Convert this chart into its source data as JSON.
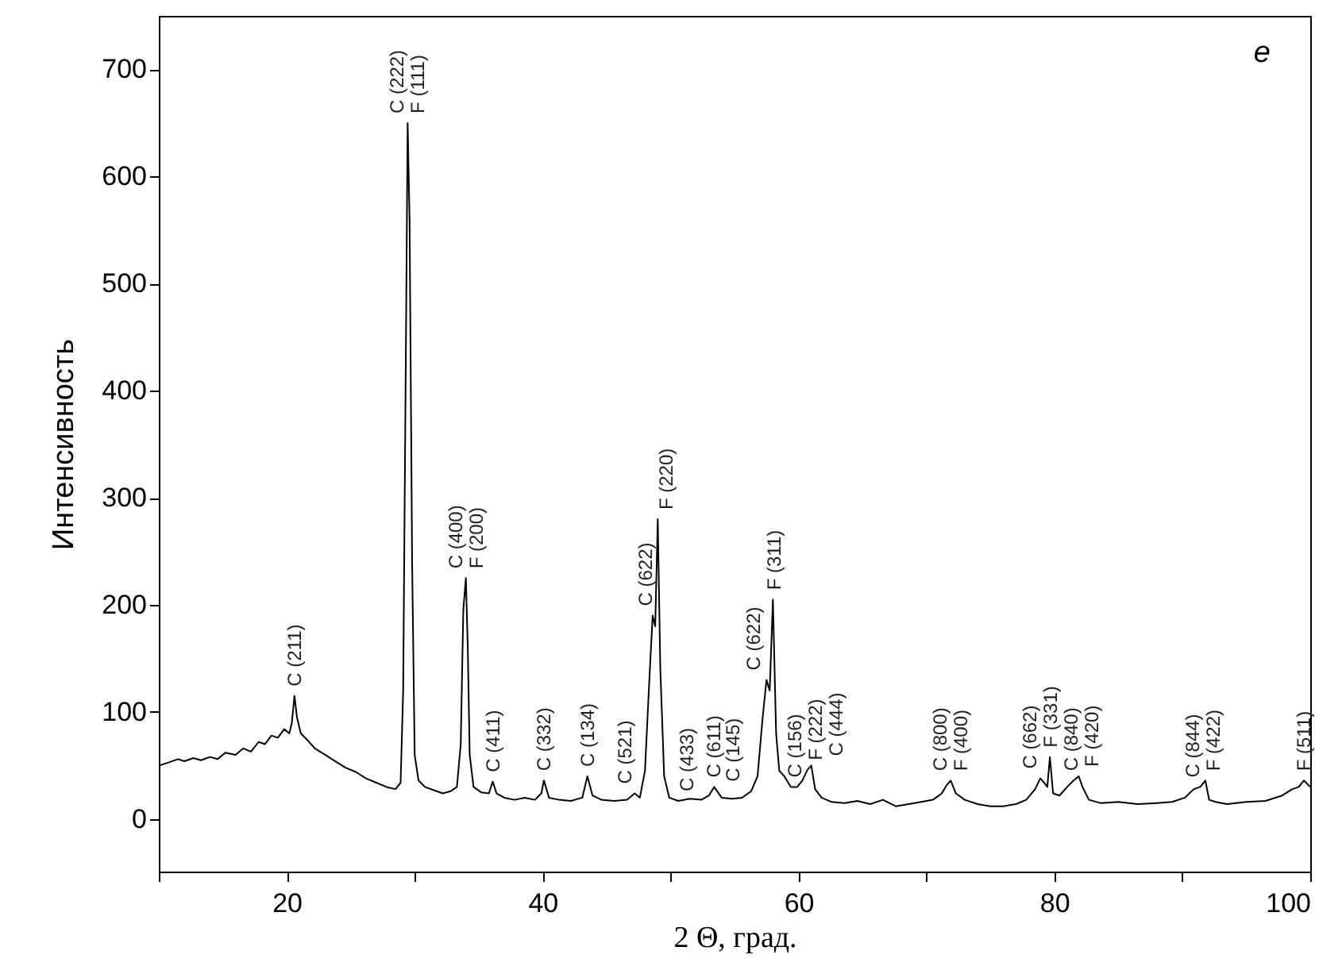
{
  "chart_data": {
    "type": "line",
    "xlabel": "2 Θ, град.",
    "ylabel": "Интенсивность",
    "xlim": [
      10,
      100
    ],
    "ylim": [
      -49,
      750
    ],
    "xticks": [
      {
        "value": 10,
        "label": null
      },
      20,
      {
        "value": 30,
        "label": null
      },
      40,
      {
        "value": 50,
        "label": null
      },
      60,
      {
        "value": 70,
        "label": null
      },
      80,
      {
        "value": 90,
        "label": null
      },
      100
    ],
    "yticks": [
      0,
      100,
      200,
      300,
      400,
      500,
      600,
      700
    ],
    "grid": false,
    "marker": "none",
    "line_style": "solid",
    "series": [
      {
        "color": "#000000",
        "x": [
          10,
          10.8,
          11.5,
          12,
          12.7,
          13.3,
          14,
          14.6,
          15.2,
          16,
          16.6,
          17.2,
          17.8,
          18.3,
          18.8,
          19.3,
          19.8,
          20.2,
          20.4,
          20.6,
          20.8,
          21.1,
          21.6,
          22.2,
          23,
          23.8,
          24.6,
          25.4,
          26.2,
          27,
          27.8,
          28.5,
          28.9,
          29.1,
          29.3,
          29.45,
          29.6,
          29.8,
          30,
          30.3,
          30.8,
          31.5,
          32.2,
          32.8,
          33.3,
          33.6,
          33.8,
          34,
          34.15,
          34.3,
          34.6,
          35.2,
          35.8,
          36.1,
          36.4,
          37,
          37.8,
          38.6,
          39.4,
          39.9,
          40.1,
          40.5,
          41.3,
          42.2,
          43.1,
          43.5,
          43.9,
          44.6,
          45.6,
          46.6,
          47.2,
          47.6,
          48,
          48.3,
          48.6,
          48.8,
          49,
          49.2,
          49.5,
          49.9,
          50.6,
          51.5,
          52.4,
          53,
          53.4,
          54,
          54.8,
          55.6,
          56.3,
          56.8,
          57.2,
          57.5,
          57.75,
          58,
          58.25,
          58.5,
          58.9,
          59.4,
          59.9,
          60.3,
          60.7,
          61,
          61.3,
          61.8,
          62.6,
          63.6,
          64.6,
          65.6,
          66.6,
          67.6,
          68.6,
          69.6,
          70.5,
          71.2,
          71.6,
          71.9,
          72.3,
          73,
          74,
          75,
          76,
          77,
          77.8,
          78.5,
          78.9,
          79.2,
          79.45,
          79.65,
          79.9,
          80.4,
          81,
          81.5,
          81.9,
          82.2,
          82.7,
          83.6,
          85,
          86.5,
          88,
          89.2,
          90.2,
          90.9,
          91.4,
          91.8,
          92.1,
          92.6,
          93.5,
          95,
          96.5,
          97.8,
          98.6,
          99.1,
          99.5,
          100
        ],
        "values": [
          50,
          53,
          56,
          54,
          57,
          55,
          58,
          56,
          62,
          60,
          66,
          63,
          72,
          70,
          78,
          76,
          84,
          80,
          90,
          115,
          95,
          80,
          74,
          66,
          60,
          54,
          48,
          44,
          38,
          34,
          30,
          28,
          34,
          120,
          420,
          650,
          560,
          240,
          60,
          36,
          30,
          27,
          24,
          26,
          30,
          70,
          195,
          225,
          160,
          60,
          30,
          25,
          24,
          35,
          24,
          20,
          18,
          20,
          18,
          24,
          36,
          20,
          18,
          17,
          20,
          40,
          22,
          18,
          17,
          18,
          24,
          20,
          45,
          120,
          190,
          180,
          280,
          140,
          40,
          20,
          17,
          19,
          18,
          22,
          30,
          20,
          19,
          20,
          26,
          40,
          95,
          130,
          120,
          205,
          80,
          45,
          40,
          30,
          30,
          36,
          46,
          50,
          28,
          20,
          16,
          15,
          17,
          14,
          18,
          12,
          14,
          16,
          18,
          24,
          32,
          36,
          24,
          18,
          14,
          12,
          12,
          14,
          18,
          28,
          38,
          34,
          30,
          58,
          24,
          22,
          30,
          36,
          40,
          30,
          18,
          15,
          16,
          14,
          15,
          16,
          20,
          28,
          30,
          36,
          18,
          16,
          14,
          16,
          17,
          22,
          28,
          30,
          36,
          30
        ]
      }
    ],
    "annotations": [
      {
        "text": "C (211)",
        "x": 20.6,
        "y": 115
      },
      {
        "text": "C (222)",
        "x": 29.45,
        "y": 650
      },
      {
        "text": "F (111)",
        "x": 29.45,
        "y": 650
      },
      {
        "text": "C (400)",
        "x": 34,
        "y": 225
      },
      {
        "text": "F (200)",
        "x": 34,
        "y": 225
      },
      {
        "text": "C (411)",
        "x": 36.1,
        "y": 35
      },
      {
        "text": "C (332)",
        "x": 40.1,
        "y": 36
      },
      {
        "text": "C (134)",
        "x": 43.5,
        "y": 40
      },
      {
        "text": "C (521)",
        "x": 47.2,
        "y": 24
      },
      {
        "text": "C (622)",
        "x": 48.6,
        "y": 190
      },
      {
        "text": "F (220)",
        "x": 49,
        "y": 280
      },
      {
        "text": "C (433)",
        "x": 50.6,
        "y": 17
      },
      {
        "text": "C (611)",
        "x": 53.4,
        "y": 30
      },
      {
        "text": "C (145)",
        "x": 56.3,
        "y": 26
      },
      {
        "text": "C (622)",
        "x": 57.5,
        "y": 130
      },
      {
        "text": "F (311)",
        "x": 58,
        "y": 205
      },
      {
        "text": "C (156)",
        "x": 59.9,
        "y": 30
      },
      {
        "text": "F (222)",
        "x": 60.7,
        "y": 46
      },
      {
        "text": "C (444)",
        "x": 61,
        "y": 50
      },
      {
        "text": "C (800)",
        "x": 71.9,
        "y": 36
      },
      {
        "text": "F (400)",
        "x": 71.9,
        "y": 36
      },
      {
        "text": "C (662)",
        "x": 78.9,
        "y": 38
      },
      {
        "text": "F (331)",
        "x": 79.65,
        "y": 58
      },
      {
        "text": "C (840)",
        "x": 81.5,
        "y": 36
      },
      {
        "text": "F (420)",
        "x": 81.9,
        "y": 40
      },
      {
        "text": "C (844)",
        "x": 91.4,
        "y": 30
      },
      {
        "text": "F (422)",
        "x": 91.8,
        "y": 36
      },
      {
        "text": "F (511)",
        "x": 99.5,
        "y": 36
      },
      "e"
    ]
  }
}
